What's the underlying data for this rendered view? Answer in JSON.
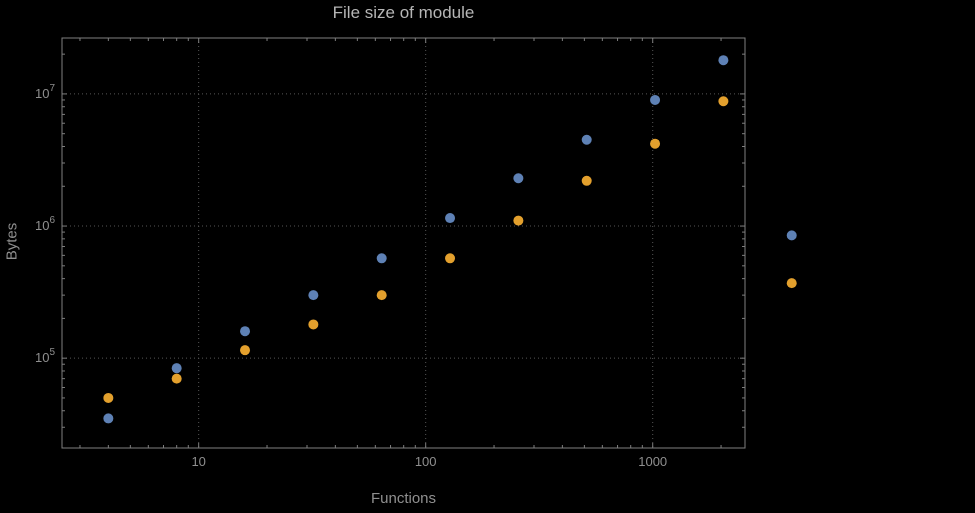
{
  "colors": {
    "background": "#000000",
    "series_blue": "#5e81b5",
    "series_orange": "#e3a02d",
    "frame_gray": "#7f7f7f",
    "grid_gray": "#565656",
    "text_gray": "#8f8f8f",
    "title_gray": "#b6b6b6"
  },
  "chart_data": {
    "type": "scatter",
    "title": "File size of module",
    "xlabel": "Functions",
    "ylabel": "Bytes",
    "x_scale": "log",
    "y_scale": "log",
    "grid": true,
    "legend": "none",
    "x_range": [
      2.5,
      2550
    ],
    "y_range": [
      20900,
      26500000
    ],
    "x_ticks": [
      10,
      100,
      1000
    ],
    "x_tick_labels": [
      "10",
      "100",
      "1000"
    ],
    "y_ticks": [
      100000,
      1000000,
      10000000
    ],
    "y_tick_labels": [
      {
        "base": "10",
        "exp": "5"
      },
      {
        "base": "10",
        "exp": "6"
      },
      {
        "base": "10",
        "exp": "7"
      }
    ],
    "x": [
      4,
      8,
      16,
      32,
      64,
      128,
      256,
      512,
      1024,
      2048,
      4096
    ],
    "series": [
      {
        "name": "blue",
        "color": "#5e81b5",
        "values": [
          35000,
          84000,
          160000,
          300000,
          570000,
          1150000,
          2300000,
          4500000,
          9000000,
          18000000,
          850000
        ]
      },
      {
        "name": "orange",
        "color": "#e3a02d",
        "values": [
          50000,
          70000,
          115000,
          180000,
          300000,
          570000,
          1100000,
          2200000,
          4200000,
          8800000,
          370000
        ]
      }
    ]
  }
}
